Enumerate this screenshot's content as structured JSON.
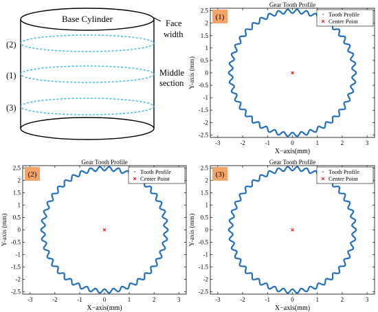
{
  "diagram": {
    "title": "Base Cylinder",
    "face_label_line1": "Face",
    "face_label_line2": "width",
    "mid_label_line1": "Middle",
    "mid_label_line2": "section",
    "slice_labels": [
      "(2)",
      "(1)",
      "(3)"
    ],
    "slice_color": "#29b6e8"
  },
  "chart_data": [
    {
      "type": "scatter",
      "panel_label": "(1)",
      "title": "Gear Tooth Profile",
      "xlabel": "X−axis(mm)",
      "ylabel": "Y-axis (mm)",
      "xlim": [
        -3.3,
        3.3
      ],
      "ylim": [
        -2.6,
        2.6
      ],
      "xticks": [
        -3,
        -2,
        -1,
        0,
        1,
        2,
        3
      ],
      "yticks": [
        -2.5,
        -2,
        -1.5,
        -1,
        -0.5,
        0,
        0.5,
        1,
        1.5,
        2,
        2.5
      ],
      "legend": [
        "Tooth Profile",
        "Center Point"
      ],
      "legend_position": "top-right",
      "series": [
        {
          "name": "Tooth Profile",
          "shape": "circle",
          "base_radius": 2.48,
          "amplitude": 0.08,
          "teeth": 42,
          "color": "#1f6fc0"
        },
        {
          "name": "Center Point",
          "x": [
            0
          ],
          "y": [
            0
          ],
          "marker": "x",
          "color": "#e81818"
        }
      ],
      "label_bg": "#f5a468"
    },
    {
      "type": "scatter",
      "panel_label": "(2)",
      "title": "Gear Tooth Profile",
      "xlabel": "X−axis(mm)",
      "ylabel": "Y-axis (mm)",
      "xlim": [
        -3.3,
        3.3
      ],
      "ylim": [
        -2.6,
        2.6
      ],
      "xticks": [
        -3,
        -2,
        -1,
        0,
        1,
        2,
        3
      ],
      "yticks": [
        -2.5,
        -2,
        -1.5,
        -1,
        -0.5,
        0,
        0.5,
        1,
        1.5,
        2,
        2.5
      ],
      "legend": [
        "Tooth Profile",
        "Center Point"
      ],
      "legend_position": "top-right",
      "series": [
        {
          "name": "Tooth Profile",
          "shape": "circle",
          "base_radius": 2.48,
          "amplitude": 0.08,
          "teeth": 42,
          "color": "#1f6fc0"
        },
        {
          "name": "Center Point",
          "x": [
            0
          ],
          "y": [
            0
          ],
          "marker": "x",
          "color": "#e81818"
        }
      ],
      "label_bg": "#f5a468"
    },
    {
      "type": "scatter",
      "panel_label": "(3)",
      "title": "Gear Tooth Profile",
      "xlabel": "X−axis(mm)",
      "ylabel": "Y-axis (mm)",
      "xlim": [
        -3.3,
        3.3
      ],
      "ylim": [
        -2.6,
        2.6
      ],
      "xticks": [
        -3,
        -2,
        -1,
        0,
        1,
        2,
        3
      ],
      "yticks": [
        -2.5,
        -2,
        -1.5,
        -1,
        -0.5,
        0,
        0.5,
        1,
        1.5,
        2,
        2.5
      ],
      "legend": [
        "Tooth Profile",
        "Center Point"
      ],
      "legend_position": "top-right",
      "series": [
        {
          "name": "Tooth Profile",
          "shape": "circle",
          "base_radius": 2.48,
          "amplitude": 0.08,
          "teeth": 42,
          "color": "#1f6fc0"
        },
        {
          "name": "Center Point",
          "x": [
            0
          ],
          "y": [
            0
          ],
          "marker": "x",
          "color": "#e81818"
        }
      ],
      "label_bg": "#f5a468"
    }
  ]
}
